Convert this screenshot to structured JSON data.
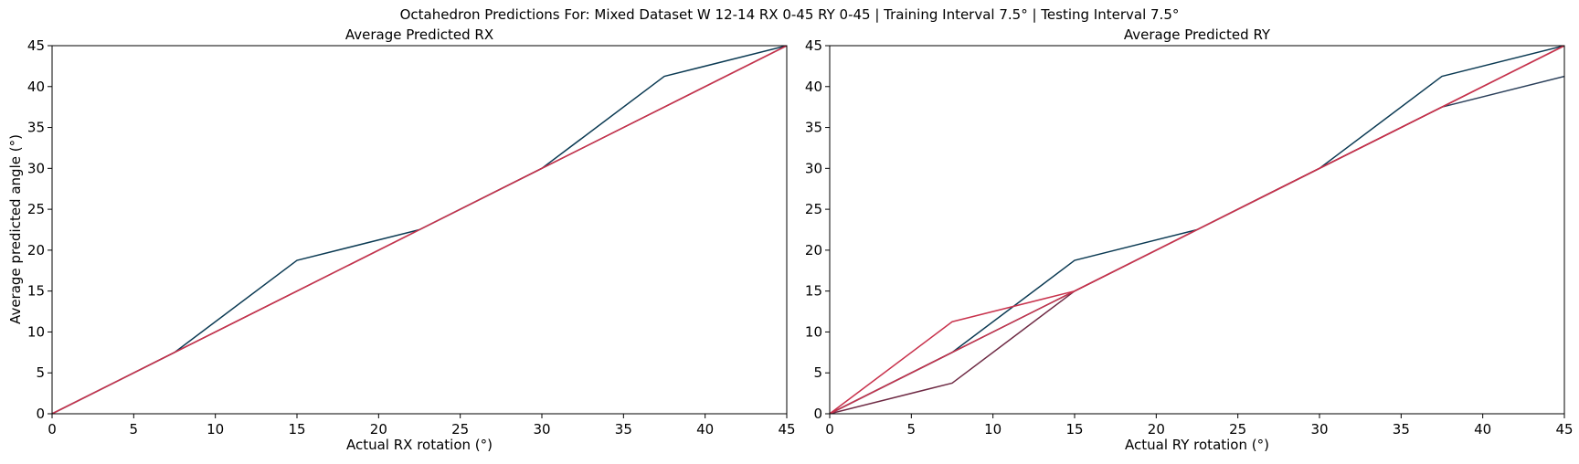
{
  "figure": {
    "suptitle": "Octahedron Predictions For: Mixed Dataset W 12-14 RX 0-45 RY 0-45 | Training Interval 7.5° | Testing Interval 7.5°"
  },
  "chart_data": [
    {
      "type": "line",
      "title": "Average Predicted RX",
      "xlabel": "Actual RX rotation (°)",
      "ylabel": "Average predicted angle (°)",
      "xlim": [
        0,
        45
      ],
      "ylim": [
        0,
        45
      ],
      "xticks": [
        0,
        5,
        10,
        15,
        20,
        25,
        30,
        35,
        40,
        45
      ],
      "yticks": [
        0,
        5,
        10,
        15,
        20,
        25,
        30,
        35,
        40,
        45
      ],
      "grid": false,
      "series": [
        {
          "color": "#0b3a53",
          "x": [
            0,
            7.5,
            15,
            22.5,
            30,
            37.5,
            45
          ],
          "y": [
            0,
            7.5,
            18.75,
            22.5,
            30,
            41.25,
            45
          ]
        },
        {
          "color": "#6e2a44",
          "x": [
            0,
            7.5,
            15,
            22.5,
            30,
            37.5,
            45
          ],
          "y": [
            0,
            7.5,
            15,
            22.5,
            30,
            37.5,
            45
          ]
        },
        {
          "color": "#c8324c",
          "x": [
            0,
            7.5,
            15,
            22.5,
            30,
            37.5,
            45
          ],
          "y": [
            0,
            7.5,
            15,
            22.5,
            30,
            37.5,
            45
          ]
        }
      ]
    },
    {
      "type": "line",
      "title": "Average Predicted RY",
      "xlabel": "Actual RY rotation (°)",
      "ylabel": "",
      "xlim": [
        0,
        45
      ],
      "ylim": [
        0,
        45
      ],
      "xticks": [
        0,
        5,
        10,
        15,
        20,
        25,
        30,
        35,
        40,
        45
      ],
      "yticks": [
        0,
        5,
        10,
        15,
        20,
        25,
        30,
        35,
        40,
        45
      ],
      "grid": false,
      "series": [
        {
          "color": "#0b3a53",
          "x": [
            0,
            7.5,
            15,
            22.5,
            30,
            37.5,
            45
          ],
          "y": [
            0,
            7.5,
            18.75,
            22.5,
            30,
            41.25,
            45
          ]
        },
        {
          "color": "#2a3f5a",
          "x": [
            0,
            7.5,
            15,
            22.5,
            30,
            37.5,
            45
          ],
          "y": [
            0,
            7.5,
            15,
            22.5,
            30,
            37.5,
            41.25
          ]
        },
        {
          "color": "#6e2a44",
          "x": [
            0,
            7.5,
            15,
            22.5,
            30,
            37.5,
            45
          ],
          "y": [
            0,
            3.75,
            15,
            22.5,
            30,
            37.5,
            45
          ]
        },
        {
          "color": "#c8324c",
          "x": [
            0,
            7.5,
            15,
            22.5,
            30,
            37.5,
            45
          ],
          "y": [
            0,
            11.25,
            15,
            22.5,
            30,
            37.5,
            45
          ]
        },
        {
          "color": "#c8324c",
          "x": [
            0,
            7.5,
            15,
            22.5,
            30,
            37.5,
            45
          ],
          "y": [
            0,
            7.5,
            15,
            22.5,
            30,
            37.5,
            45
          ]
        }
      ]
    }
  ]
}
